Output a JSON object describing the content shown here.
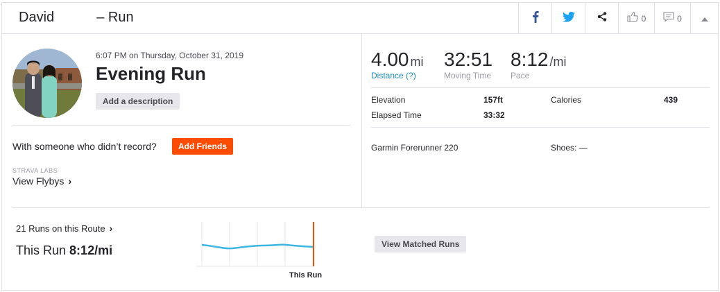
{
  "header": {
    "title": "David           – Run",
    "kudos_count": "0",
    "comment_count": "0",
    "icons": [
      "facebook-icon",
      "twitter-icon",
      "share-icon",
      "kudos-thumb-icon",
      "comment-icon",
      "collapse-arrow-icon"
    ],
    "colors": {
      "facebook": "#3b5998",
      "twitter": "#1da1f2"
    }
  },
  "activity": {
    "date": "6:07 PM on Thursday, October 31, 2019",
    "name": "Evening Run",
    "add_description": "Add a description",
    "with_someone": "With someone who didn’t record?",
    "add_friends": "Add Friends",
    "labs_label": "STRAVA LABS",
    "flybys": "View Flybys"
  },
  "stats": {
    "distance": {
      "value": "4.00",
      "unit": "mi",
      "label": "Distance (?)"
    },
    "moving_time": {
      "value": "32:51",
      "label": "Moving Time"
    },
    "pace": {
      "value": "8:12",
      "unit": "/mi",
      "label": "Pace"
    },
    "elevation": {
      "label": "Elevation",
      "value": "157ft"
    },
    "calories": {
      "label": "Calories",
      "value": "439"
    },
    "elapsed": {
      "label": "Elapsed Time",
      "value": "33:32"
    },
    "device": "Garmin Forerunner 220",
    "shoes": "Shoes: —"
  },
  "route": {
    "runs_on_route": "21 Runs on this Route",
    "this_run_prefix": "This Run",
    "this_run_pace": "8:12/mi",
    "chart_label": "This Run",
    "view_matched": "View Matched Runs",
    "trend_color": "#3cb6e3",
    "marker_color": "#fc4c02"
  }
}
